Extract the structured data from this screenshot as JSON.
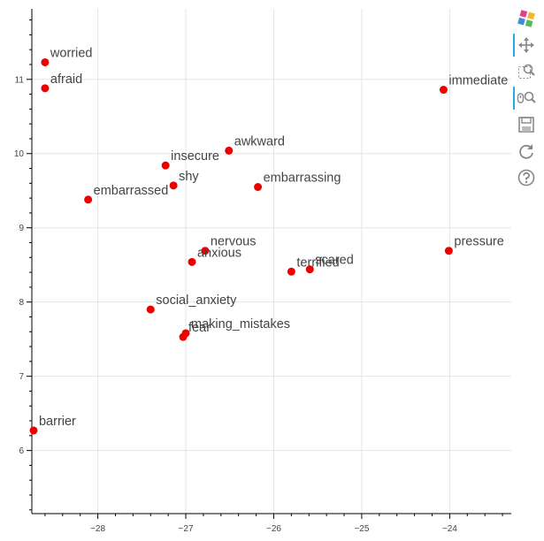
{
  "chart_data": {
    "type": "scatter",
    "title": "",
    "xlabel": "",
    "ylabel": "",
    "xlim": [
      -28.75,
      -23.3
    ],
    "ylim": [
      5.15,
      11.95
    ],
    "x_ticks": [
      -28,
      -27,
      -26,
      -25,
      -24
    ],
    "y_ticks": [
      6,
      7,
      8,
      9,
      10,
      11
    ],
    "grid": true,
    "marker_color": "#ee0000",
    "label_color": "#444444",
    "points": [
      {
        "label": "worried",
        "x": -28.6,
        "y": 11.23
      },
      {
        "label": "afraid",
        "x": -28.6,
        "y": 10.88
      },
      {
        "label": "immediate",
        "x": -24.07,
        "y": 10.86
      },
      {
        "label": "awkward",
        "x": -26.51,
        "y": 10.04
      },
      {
        "label": "insecure",
        "x": -27.23,
        "y": 9.84
      },
      {
        "label": "shy",
        "x": -27.14,
        "y": 9.57
      },
      {
        "label": "embarrassing",
        "x": -26.18,
        "y": 9.55
      },
      {
        "label": "embarrassed",
        "x": -28.11,
        "y": 9.38
      },
      {
        "label": "nervous",
        "x": -26.78,
        "y": 8.69
      },
      {
        "label": "pressure",
        "x": -24.01,
        "y": 8.69
      },
      {
        "label": "anxious",
        "x": -26.93,
        "y": 8.54
      },
      {
        "label": "scared",
        "x": -25.59,
        "y": 8.44
      },
      {
        "label": "terrified",
        "x": -25.8,
        "y": 8.41
      },
      {
        "label": "social_anxiety",
        "x": -27.4,
        "y": 7.9
      },
      {
        "label": "making_mistakes",
        "x": -27.0,
        "y": 7.58
      },
      {
        "label": "fear",
        "x": -27.03,
        "y": 7.53
      },
      {
        "label": "barrier",
        "x": -28.73,
        "y": 6.27
      }
    ]
  },
  "toolbar": {
    "tools": [
      {
        "icon": "bokeh-logo-icon",
        "active": false
      },
      {
        "icon": "pan-icon",
        "active": true
      },
      {
        "icon": "box-zoom-icon",
        "active": false
      },
      {
        "icon": "wheel-zoom-icon",
        "active": true
      },
      {
        "icon": "save-icon",
        "active": false
      },
      {
        "icon": "reset-icon",
        "active": false
      },
      {
        "icon": "help-icon",
        "active": false
      }
    ]
  }
}
